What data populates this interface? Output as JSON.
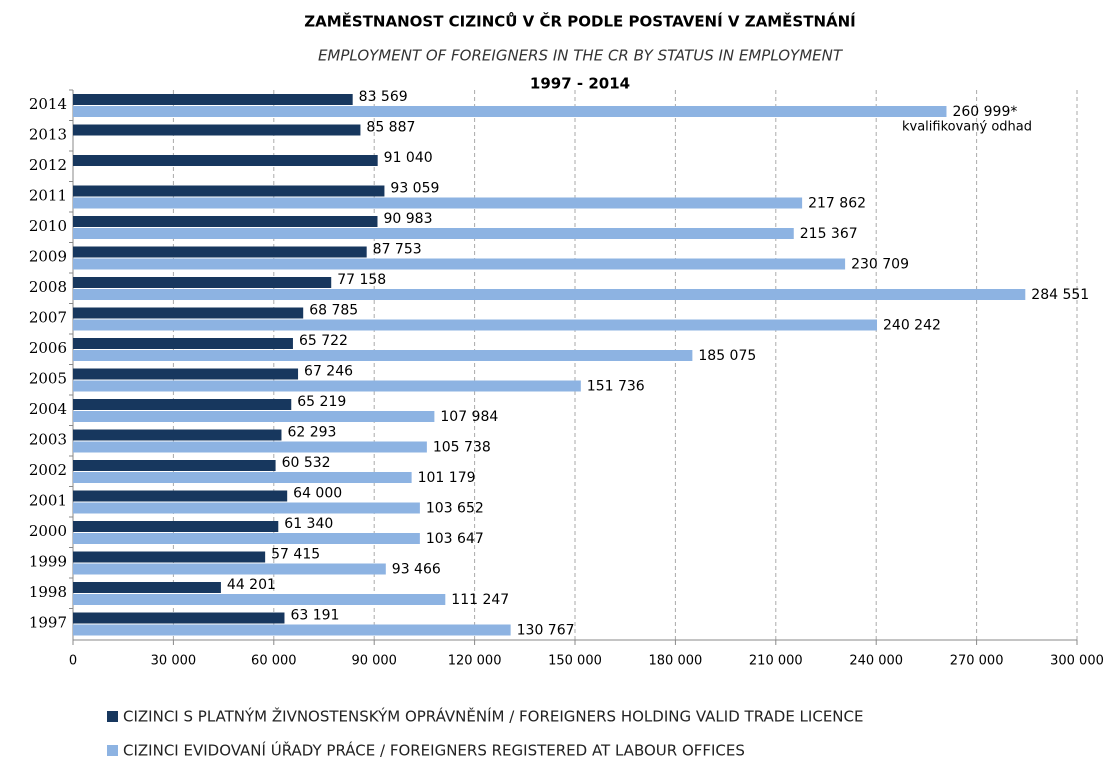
{
  "chart_data": {
    "type": "barh",
    "title": "ZAMĚSTNANOST CIZINCŮ V ČR PODLE POSTAVENÍ V ZAMĚSTNÁNÍ",
    "subtitle": "EMPLOYMENT OF FOREIGNERS IN THE CR BY STATUS IN EMPLOYMENT",
    "period": "1997 - 2014",
    "annotation": "kvalifikovaný odhad",
    "categories": [
      "2014",
      "2013",
      "2012",
      "2011",
      "2010",
      "2009",
      "2008",
      "2007",
      "2006",
      "2005",
      "2004",
      "2003",
      "2002",
      "2001",
      "2000",
      "1999",
      "1998",
      "1997"
    ],
    "series": [
      {
        "name": "CIZINCI S PLATNÝM ŽIVNOSTENSKÝM OPRÁVNĚNÍM / FOREIGNERS HOLDING VALID TRADE LICENCE",
        "color": "#17375e",
        "values": [
          83569,
          85887,
          91040,
          93059,
          90983,
          87753,
          77158,
          68785,
          65722,
          67246,
          65219,
          62293,
          60532,
          64000,
          61340,
          57415,
          44201,
          63191
        ],
        "value_labels": [
          "83 569",
          "85 887",
          "91 040",
          "93 059",
          "90 983",
          "87 753",
          "77 158",
          "68 785",
          "65 722",
          "67 246",
          "65 219",
          "62 293",
          "60 532",
          "64 000",
          "61 340",
          "57 415",
          "44 201",
          "63 191"
        ]
      },
      {
        "name": "CIZINCI EVIDOVANÍ ÚŘADY PRÁCE / FOREIGNERS REGISTERED AT LABOUR OFFICES",
        "color": "#8db3e2",
        "values": [
          260999,
          null,
          null,
          217862,
          215367,
          230709,
          284551,
          240242,
          185075,
          151736,
          107984,
          105738,
          101179,
          103652,
          103647,
          93466,
          111247,
          130767
        ],
        "value_labels": [
          "260 999*",
          null,
          null,
          "217 862",
          "215 367",
          "230 709",
          "284 551",
          "240 242",
          "185 075",
          "151 736",
          "107 984",
          "105 738",
          "101 179",
          "103 652",
          "103 647",
          "93 466",
          "111 247",
          "130 767"
        ]
      }
    ],
    "xlim": [
      0,
      300000
    ],
    "xticks": [
      0,
      {
        "value": 30000,
        "label": "30 000"
      },
      {
        "value": 60000,
        "label": "60 000"
      },
      {
        "value": 90000,
        "label": "90 000"
      },
      {
        "value": 120000,
        "label": "120 000"
      },
      {
        "value": 150000,
        "label": "150 000"
      },
      {
        "value": 180000,
        "label": "180 000"
      },
      {
        "value": 210000,
        "label": "210 000"
      },
      {
        "value": 240000,
        "label": "240 000"
      },
      {
        "value": 270000,
        "label": "270 000"
      },
      {
        "value": 300000,
        "label": "300 000"
      }
    ],
    "grid": true
  }
}
